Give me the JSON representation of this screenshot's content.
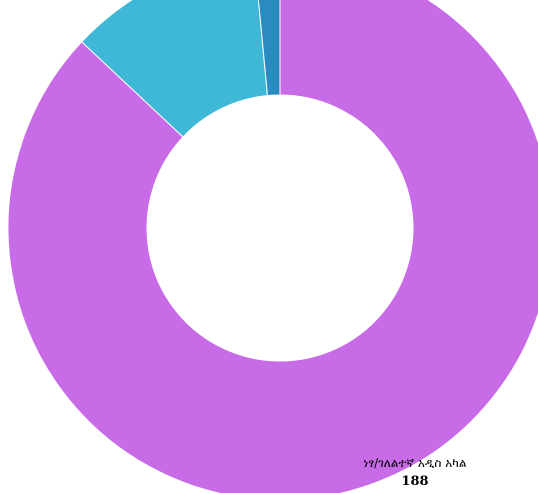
{
  "chart_data": {
    "type": "pie",
    "variant": "donut",
    "legend": "none",
    "slices": [
      {
        "label": "",
        "value": 87,
        "color": "#c86be6"
      },
      {
        "label": "",
        "value": 11.5,
        "color": "#3fb8d8"
      },
      {
        "label": "",
        "value": 1.5,
        "color": "#2a8bc0"
      }
    ],
    "label": {
      "name": "ነፃ/ገለልተኛ አዲስ አካል",
      "value": "188"
    }
  }
}
